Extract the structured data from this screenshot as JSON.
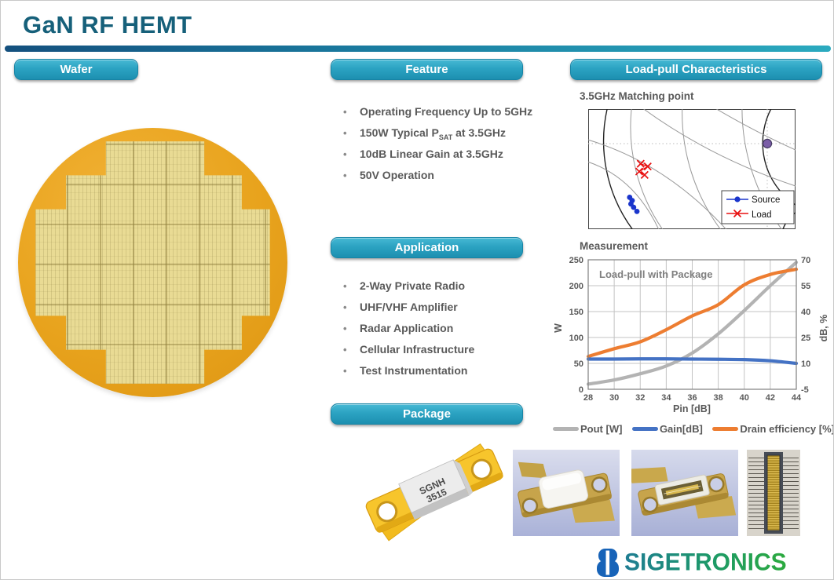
{
  "page_title": "GaN RF HEMT",
  "sections": {
    "wafer": {
      "label": "Wafer"
    },
    "feature": {
      "label": "Feature",
      "items": [
        {
          "text": "Operating Frequency Up to 5GHz"
        },
        {
          "pre": "150W Typical P",
          "sub": "SAT",
          "post": " at 3.5GHz"
        },
        {
          "text": "10dB Linear Gain at 3.5GHz"
        },
        {
          "text": "50V Operation"
        }
      ]
    },
    "application": {
      "label": "Application",
      "items": [
        "2-Way Private Radio",
        "UHF/VHF Amplifier",
        "Radar Application",
        "Cellular Infrastructure",
        "Test Instrumentation"
      ]
    },
    "package": {
      "label": "Package",
      "marking_line1": "SGNH",
      "marking_line2": "3515"
    },
    "loadpull": {
      "label": "Load-pull Characteristics"
    }
  },
  "logo": {
    "text": "SIGETRONICS",
    "icon": "double-lobe-8-mark",
    "icon_color": "#1763b8"
  },
  "colors": {
    "header_teal": "#1d8fb0",
    "title_teal": "#16607a",
    "body_text_gray": "#595959",
    "wafer_gold": "#e8a31d"
  },
  "chart_data": [
    {
      "type": "scatter",
      "title": "3.5GHz Matching point",
      "description": "Zoomed Smith-chart view of 3.5GHz source and load matching impedance points",
      "legend_position": "lower right",
      "series": [
        {
          "name": "Source",
          "marker": "circle",
          "color": "#1a35cc",
          "points_frac": [
            [
              0.2,
              0.735
            ],
            [
              0.212,
              0.762
            ],
            [
              0.206,
              0.79
            ],
            [
              0.219,
              0.818
            ],
            [
              0.235,
              0.852
            ]
          ]
        },
        {
          "name": "Load",
          "marker": "x",
          "color": "#e81010",
          "points_frac": [
            [
              0.253,
              0.455
            ],
            [
              0.287,
              0.478
            ],
            [
              0.246,
              0.52
            ],
            [
              0.272,
              0.548
            ]
          ]
        },
        {
          "name": "reference-point",
          "marker": "dot",
          "color": "#7b5ea7",
          "points_frac": [
            [
              0.864,
              0.287
            ]
          ]
        }
      ]
    },
    {
      "type": "line",
      "title": "Measurement",
      "annotation": "Load-pull with Package",
      "xlabel": "Pin [dB]",
      "ylabel_left": "W",
      "ylabel_right": "dB, %",
      "x_ticks": [
        28,
        30,
        32,
        34,
        36,
        38,
        40,
        42,
        44
      ],
      "xlim": [
        28,
        44
      ],
      "ylim_left": [
        0,
        250
      ],
      "yticks_left": [
        0,
        50,
        100,
        150,
        200,
        250
      ],
      "ylim_right": [
        -5,
        70
      ],
      "yticks_right": [
        -5,
        10,
        25,
        40,
        55,
        70
      ],
      "grid": true,
      "legend_position": "bottom",
      "x": [
        28,
        30,
        32,
        34,
        36,
        38,
        40,
        42,
        44
      ],
      "series": [
        {
          "name": "Pout [W]",
          "axis": "left",
          "color": "#b3b3b3",
          "values": [
            10,
            18,
            30,
            45,
            70,
            107,
            152,
            200,
            245
          ]
        },
        {
          "name": "Gain[dB]",
          "axis": "right",
          "color": "#4472c4",
          "values": [
            12.5,
            12.5,
            12.6,
            12.6,
            12.5,
            12.4,
            12.2,
            11.5,
            10.0
          ]
        },
        {
          "name": "Drain efficiency [%]",
          "axis": "right",
          "color": "#ed7d31",
          "values": [
            14,
            18.5,
            22.5,
            29.5,
            37.5,
            44,
            55.5,
            61.5,
            64.5
          ]
        }
      ]
    }
  ]
}
